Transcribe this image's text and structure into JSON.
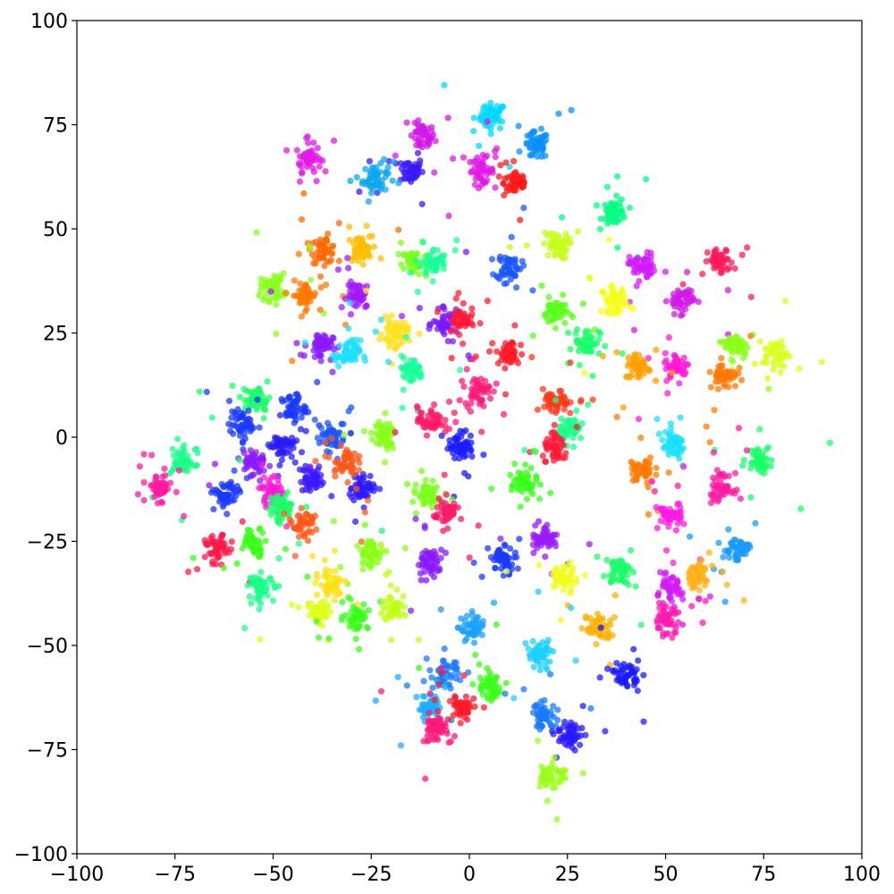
{
  "chart_data": {
    "type": "scatter",
    "title": "",
    "xlabel": "",
    "ylabel": "",
    "xlim": [
      -100,
      100
    ],
    "ylim": [
      -100,
      100
    ],
    "grid": false,
    "legend": "none",
    "xticks": [
      -100,
      -75,
      -50,
      -25,
      0,
      25,
      50,
      75,
      100
    ],
    "yticks": [
      -100,
      -75,
      -50,
      -25,
      0,
      25,
      50,
      75,
      100
    ],
    "xtick_labels": [
      "−100",
      "−75",
      "−50",
      "−25",
      "0",
      "25",
      "50",
      "75",
      "100"
    ],
    "ytick_labels": [
      "−100",
      "−75",
      "−50",
      "−25",
      "0",
      "25",
      "50",
      "75",
      "100"
    ],
    "marker_opacity": 0.75,
    "clusters": [
      {
        "x": 6,
        "y": 77,
        "color": "#00d8ff"
      },
      {
        "x": -12,
        "y": 72,
        "color": "#d21ae6"
      },
      {
        "x": -15,
        "y": 64,
        "color": "#3a1aff"
      },
      {
        "x": -41,
        "y": 67,
        "color": "#e21ae6"
      },
      {
        "x": -24,
        "y": 62,
        "color": "#0aa8f0"
      },
      {
        "x": 3,
        "y": 64,
        "color": "#e21ae6"
      },
      {
        "x": 12,
        "y": 61,
        "color": "#ff1a1a"
      },
      {
        "x": 17,
        "y": 70,
        "color": "#0a8fff"
      },
      {
        "x": 37,
        "y": 54,
        "color": "#00ff80"
      },
      {
        "x": -37,
        "y": 45,
        "color": "#ff6a00"
      },
      {
        "x": -28,
        "y": 45,
        "color": "#ffbf00"
      },
      {
        "x": -14,
        "y": 42,
        "color": "#7aff1a"
      },
      {
        "x": -9,
        "y": 42,
        "color": "#1aff9a"
      },
      {
        "x": 10,
        "y": 41,
        "color": "#1a55ff"
      },
      {
        "x": 22,
        "y": 46,
        "color": "#c4ff1a"
      },
      {
        "x": 44,
        "y": 41,
        "color": "#d21aff"
      },
      {
        "x": 64,
        "y": 42,
        "color": "#ff1a5a"
      },
      {
        "x": -50,
        "y": 36,
        "color": "#8aff1a"
      },
      {
        "x": -42,
        "y": 34,
        "color": "#ff7a00"
      },
      {
        "x": -28,
        "y": 34,
        "color": "#a21aff"
      },
      {
        "x": 37,
        "y": 33,
        "color": "#f4ff1a"
      },
      {
        "x": 54,
        "y": 33,
        "color": "#d21ae6"
      },
      {
        "x": 22,
        "y": 30,
        "color": "#5aff1a"
      },
      {
        "x": -6,
        "y": 27,
        "color": "#7a1aff"
      },
      {
        "x": -2,
        "y": 28,
        "color": "#ff1a3a"
      },
      {
        "x": -19,
        "y": 25,
        "color": "#ffe01a"
      },
      {
        "x": 30,
        "y": 23,
        "color": "#1aff6a"
      },
      {
        "x": -38,
        "y": 22,
        "color": "#8a1aff"
      },
      {
        "x": -31,
        "y": 20,
        "color": "#1ae0ff"
      },
      {
        "x": 10,
        "y": 20,
        "color": "#ff1a2a"
      },
      {
        "x": 78,
        "y": 20,
        "color": "#d8ff1a"
      },
      {
        "x": 68,
        "y": 22,
        "color": "#8aff1a"
      },
      {
        "x": 53,
        "y": 17,
        "color": "#ff1ad8"
      },
      {
        "x": 43,
        "y": 17,
        "color": "#ffa000"
      },
      {
        "x": 65,
        "y": 15,
        "color": "#ff7a00"
      },
      {
        "x": -15,
        "y": 16,
        "color": "#1aff9a"
      },
      {
        "x": 2,
        "y": 11,
        "color": "#ff1a7a"
      },
      {
        "x": -54,
        "y": 9,
        "color": "#1aff6a"
      },
      {
        "x": -45,
        "y": 7,
        "color": "#1a3aff"
      },
      {
        "x": -58,
        "y": 3,
        "color": "#1a3aff"
      },
      {
        "x": -48,
        "y": -2,
        "color": "#2a1aff"
      },
      {
        "x": -35,
        "y": 0,
        "color": "#1a55ff"
      },
      {
        "x": -22,
        "y": 0,
        "color": "#8aff1a"
      },
      {
        "x": -10,
        "y": 4,
        "color": "#ff1a6a"
      },
      {
        "x": -2,
        "y": -2,
        "color": "#1a1aff"
      },
      {
        "x": -27,
        "y": -12,
        "color": "#2a1aff"
      },
      {
        "x": -40,
        "y": -10,
        "color": "#3a1aff"
      },
      {
        "x": -32,
        "y": -6,
        "color": "#ff5a1a"
      },
      {
        "x": -55,
        "y": -6,
        "color": "#8a1aff"
      },
      {
        "x": -50,
        "y": -13,
        "color": "#ff1ad8"
      },
      {
        "x": 22,
        "y": 8,
        "color": "#ff3a1a"
      },
      {
        "x": 26,
        "y": 2,
        "color": "#1aff8a"
      },
      {
        "x": 22,
        "y": -3,
        "color": "#ff1a3a"
      },
      {
        "x": 52,
        "y": -2,
        "color": "#1ae0ff"
      },
      {
        "x": 44,
        "y": -8,
        "color": "#ff7a00"
      },
      {
        "x": 74,
        "y": -5,
        "color": "#1aff6a"
      },
      {
        "x": 64,
        "y": -12,
        "color": "#ff1aa0"
      },
      {
        "x": -73,
        "y": -6,
        "color": "#1aff8a"
      },
      {
        "x": -79,
        "y": -12,
        "color": "#ff1aa0"
      },
      {
        "x": -62,
        "y": -14,
        "color": "#1a3aff"
      },
      {
        "x": -48,
        "y": -17,
        "color": "#1aff6a"
      },
      {
        "x": -10,
        "y": -14,
        "color": "#7aff1a"
      },
      {
        "x": -6,
        "y": -18,
        "color": "#ff1a6a"
      },
      {
        "x": 14,
        "y": -11,
        "color": "#3aff1a"
      },
      {
        "x": 51,
        "y": -19,
        "color": "#ff1ae6"
      },
      {
        "x": -42,
        "y": -21,
        "color": "#ff5a1a"
      },
      {
        "x": -64,
        "y": -27,
        "color": "#ff1a4a"
      },
      {
        "x": -55,
        "y": -25,
        "color": "#3aff1a"
      },
      {
        "x": -25,
        "y": -28,
        "color": "#8aff1a"
      },
      {
        "x": -10,
        "y": -30,
        "color": "#8a1aff"
      },
      {
        "x": 9,
        "y": -29,
        "color": "#1a3aff"
      },
      {
        "x": 19,
        "y": -24,
        "color": "#9a1aff"
      },
      {
        "x": 24,
        "y": -34,
        "color": "#f0ff1a"
      },
      {
        "x": 38,
        "y": -32,
        "color": "#1aff6a"
      },
      {
        "x": 68,
        "y": -27,
        "color": "#1a9aff"
      },
      {
        "x": 58,
        "y": -33,
        "color": "#ffb01a"
      },
      {
        "x": 51,
        "y": -37,
        "color": "#d21aff"
      },
      {
        "x": 50,
        "y": -44,
        "color": "#ff1ab0"
      },
      {
        "x": -53,
        "y": -36,
        "color": "#1aff8a"
      },
      {
        "x": -35,
        "y": -35,
        "color": "#ffe01a"
      },
      {
        "x": -38,
        "y": -42,
        "color": "#e0ff1a"
      },
      {
        "x": -29,
        "y": -43,
        "color": "#3aff1a"
      },
      {
        "x": -19,
        "y": -41,
        "color": "#c0ff1a"
      },
      {
        "x": 33,
        "y": -46,
        "color": "#ffb000"
      },
      {
        "x": 1,
        "y": -46,
        "color": "#1aa0ff"
      },
      {
        "x": 40,
        "y": -57,
        "color": "#1a1aff"
      },
      {
        "x": 18,
        "y": -52,
        "color": "#1ad0ff"
      },
      {
        "x": -6,
        "y": -57,
        "color": "#1a7aff"
      },
      {
        "x": 5,
        "y": -60,
        "color": "#3aff1a"
      },
      {
        "x": -10,
        "y": -65,
        "color": "#1ab0ff"
      },
      {
        "x": -2,
        "y": -65,
        "color": "#ff1a2a"
      },
      {
        "x": -9,
        "y": -70,
        "color": "#ff1a7a"
      },
      {
        "x": 19,
        "y": -67,
        "color": "#1a7aff"
      },
      {
        "x": 26,
        "y": -71,
        "color": "#2a1aff"
      },
      {
        "x": 21,
        "y": -81,
        "color": "#9aff1a"
      }
    ]
  }
}
